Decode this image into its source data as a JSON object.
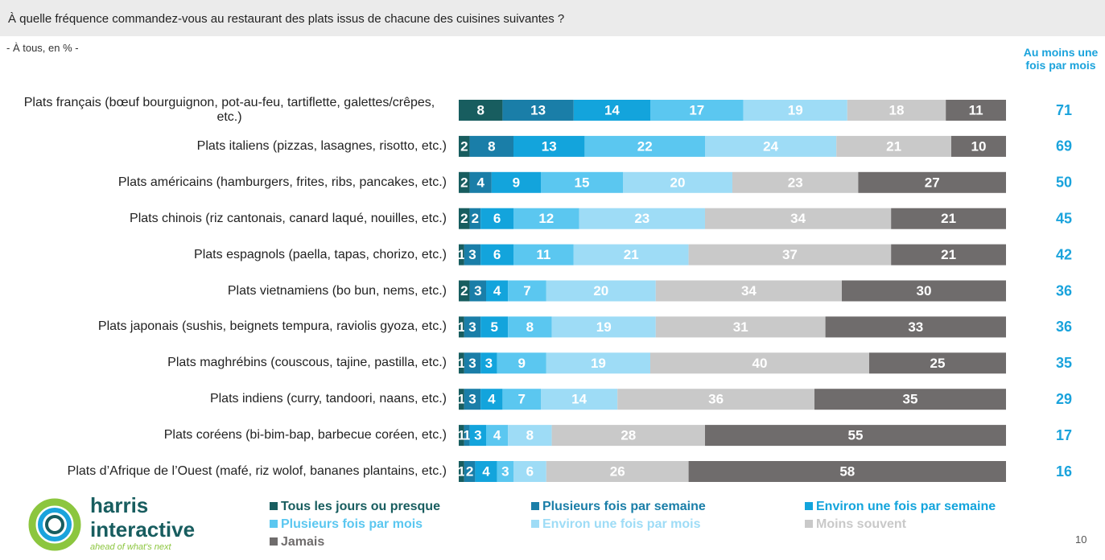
{
  "header": {
    "title": "À quelle fréquence commandez-vous au restaurant des plats issus de chacune des cuisines suivantes ?"
  },
  "chart_data": {
    "type": "stacked-bar",
    "subtitle": "- À tous, en % -",
    "categories": [
      "Plats français (bœuf bourguignon, pot-au-feu, tartiflette, galettes/crêpes, etc.)",
      "Plats italiens (pizzas, lasagnes, risotto, etc.)",
      "Plats américains (hamburgers, frites, ribs, pancakes, etc.)",
      "Plats chinois (riz cantonais, canard laqué, nouilles, etc.)",
      "Plats espagnols (paella, tapas, chorizo, etc.)",
      "Plats vietnamiens (bo bun, nems, etc.)",
      "Plats japonais (sushis, beignets tempura, raviolis gyoza, etc.)",
      "Plats maghrébins (couscous, tajine, pastilla, etc.)",
      "Plats indiens (curry, tandoori, naans, etc.)",
      "Plats coréens (bi-bim-bap, barbecue coréen, etc.)",
      "Plats d’Afrique de l’Ouest (mafé, riz wolof, bananes plantains, etc.)"
    ],
    "xlim": [
      0,
      100
    ],
    "series": [
      {
        "name": "Tous les jours ou presque",
        "color": "#185d5f",
        "values": [
          8,
          2,
          2,
          2,
          1,
          2,
          1,
          1,
          1,
          1,
          1
        ]
      },
      {
        "name": "Plusieurs fois par semaine",
        "color": "#1a7ea8",
        "values": [
          13,
          8,
          4,
          2,
          3,
          3,
          3,
          3,
          3,
          1,
          2
        ]
      },
      {
        "name": "Environ une fois par semaine",
        "color": "#13a4dc",
        "values": [
          14,
          13,
          9,
          6,
          6,
          4,
          5,
          3,
          4,
          3,
          4
        ]
      },
      {
        "name": "Plusieurs fois par mois",
        "color": "#5bc7f0",
        "values": [
          17,
          22,
          15,
          12,
          11,
          7,
          8,
          9,
          7,
          4,
          3
        ]
      },
      {
        "name": "Environ une fois par mois",
        "color": "#9edcf6",
        "values": [
          19,
          24,
          20,
          23,
          21,
          20,
          19,
          19,
          14,
          8,
          6
        ]
      },
      {
        "name": "Moins souvent",
        "color": "#c9c9c9",
        "values": [
          18,
          21,
          23,
          34,
          37,
          34,
          31,
          40,
          36,
          28,
          26
        ]
      },
      {
        "name": "Jamais",
        "color": "#6f6c6c",
        "values": [
          11,
          10,
          27,
          21,
          21,
          30,
          33,
          25,
          35,
          55,
          58
        ]
      }
    ],
    "summary": {
      "title": "Au moins une fois par mois",
      "color": "#1aa3dc",
      "values": [
        71,
        69,
        50,
        45,
        42,
        36,
        36,
        35,
        29,
        17,
        16
      ]
    }
  },
  "footer": {
    "logo_name": "harris",
    "logo_name2": "interactive",
    "tagline": "ahead of what's next",
    "page": "10"
  }
}
